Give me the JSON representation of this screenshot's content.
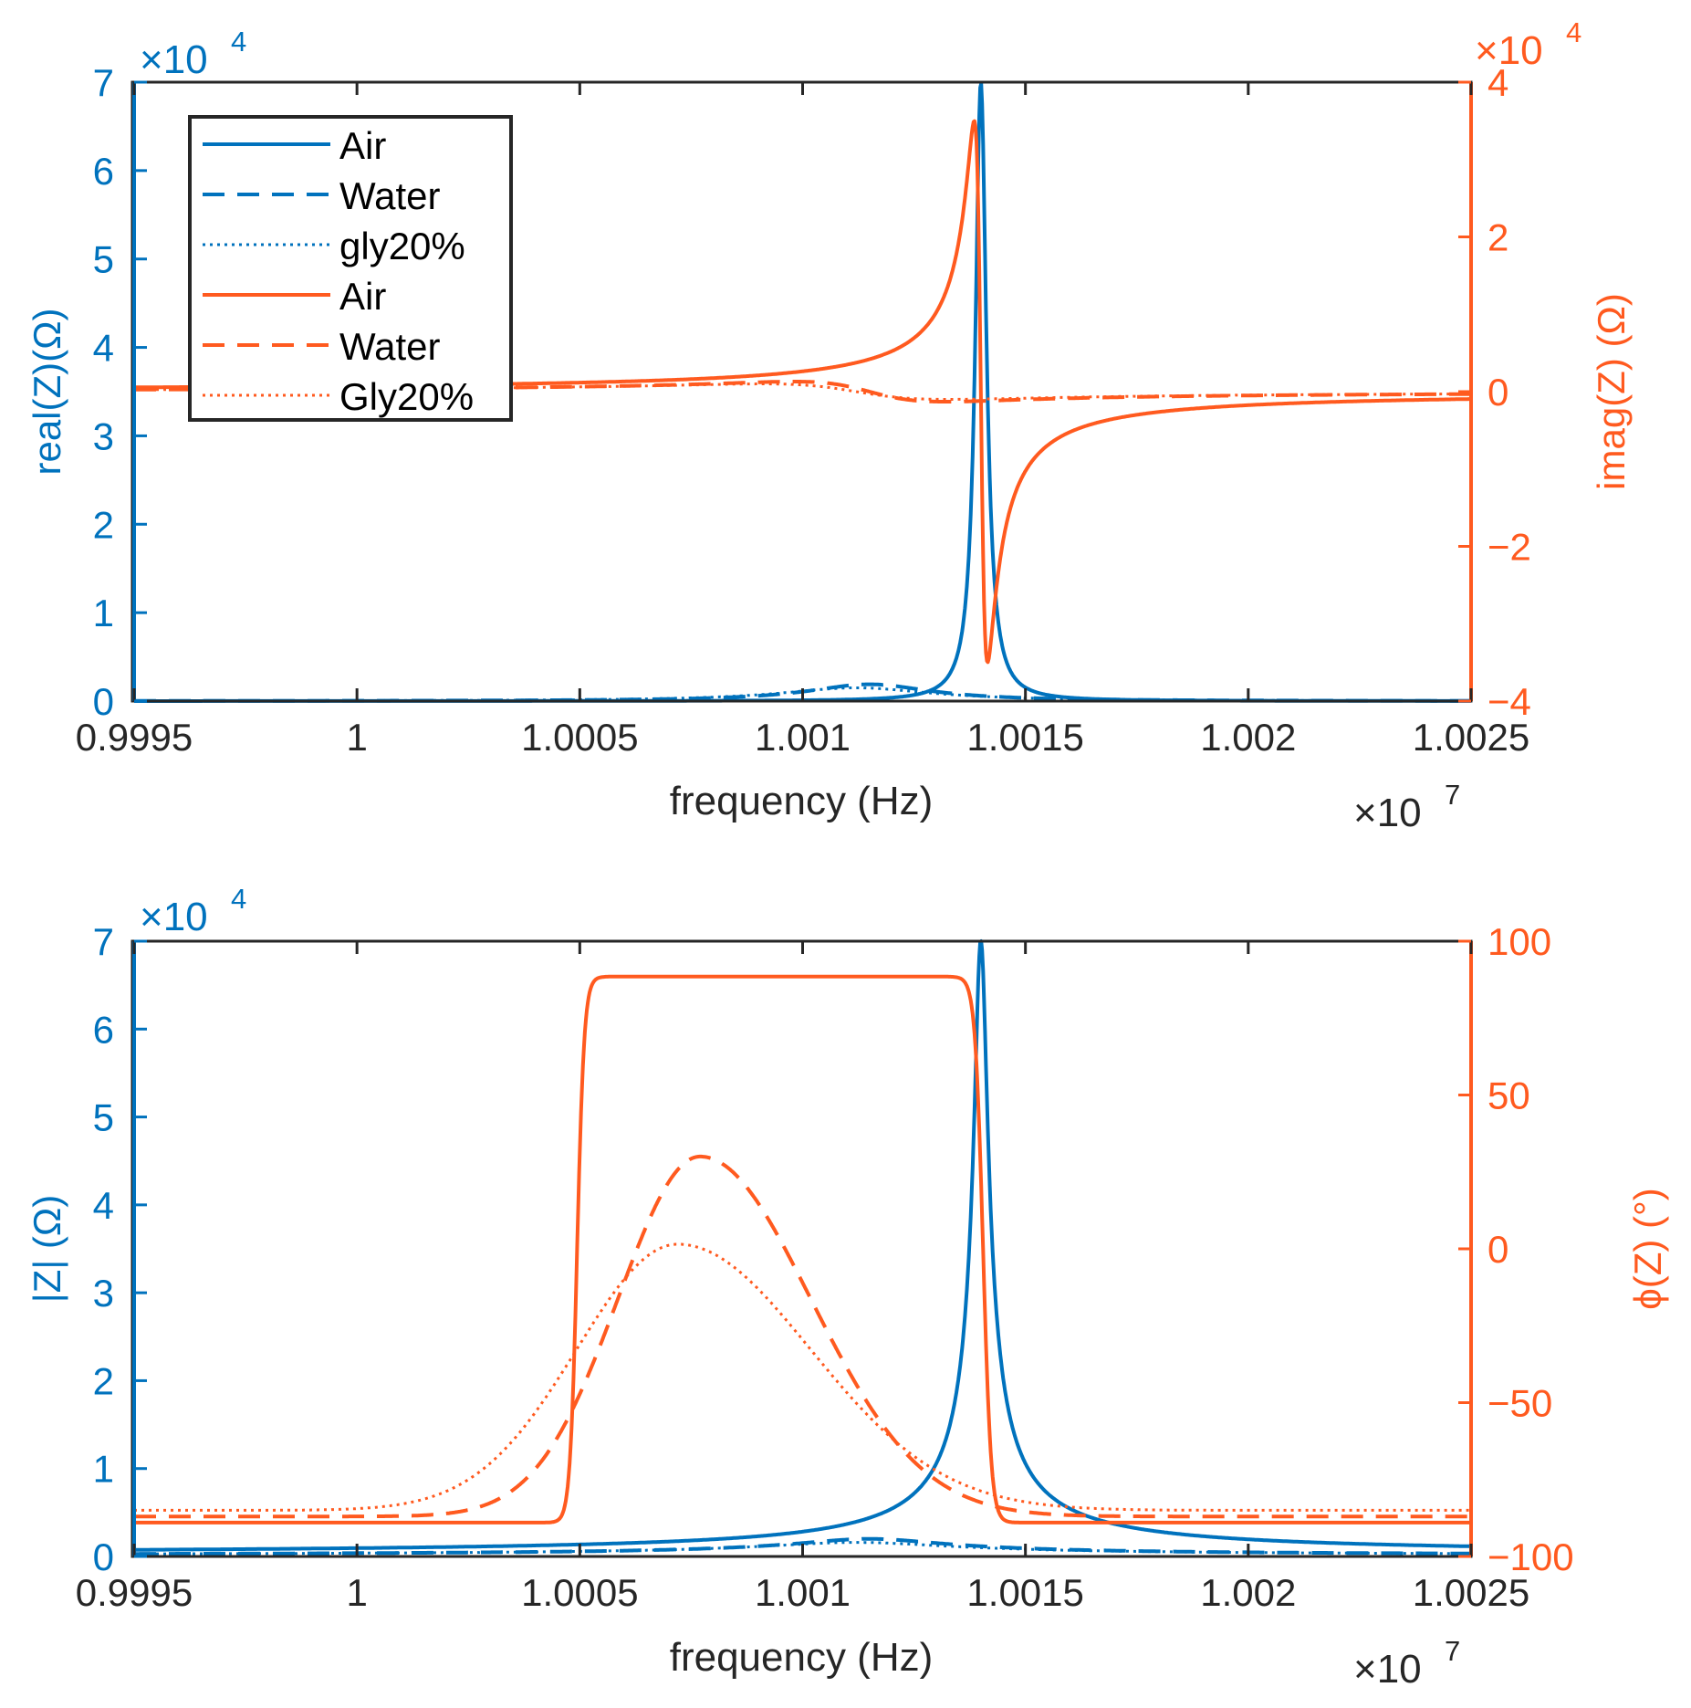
{
  "colors": {
    "blue": "#0072BD",
    "orange": "#FF5A1F",
    "black": "#262626"
  },
  "chart_data": [
    {
      "type": "line",
      "id": "top",
      "xlabel": "frequency (Hz)",
      "x_exponent": "×10",
      "x_exponent_power": "7",
      "xlim": [
        0.9995,
        1.0025
      ],
      "xticks": [
        "0.9995",
        "1",
        "1.0005",
        "1.001",
        "1.0015",
        "1.002",
        "1.0025"
      ],
      "ylabel_left": "real(Z)(Ω)",
      "ylim_left": [
        0,
        7
      ],
      "yticks_left": [
        "0",
        "1",
        "2",
        "3",
        "4",
        "5",
        "6",
        "7"
      ],
      "left_exponent": "×10",
      "left_exponent_power": "4",
      "ylabel_right": "imag(Z) (Ω)",
      "ylim_right": [
        -4,
        4
      ],
      "yticks_right": [
        "-4",
        "-2",
        "0",
        "2",
        "4"
      ],
      "right_exponent": "×10",
      "right_exponent_power": "4",
      "legend": [
        {
          "label": "Air",
          "color": "blue",
          "style": "solid"
        },
        {
          "label": "Water",
          "color": "blue",
          "style": "dashed"
        },
        {
          "label": "gly20%",
          "color": "blue",
          "style": "dotted"
        },
        {
          "label": "Air",
          "color": "orange",
          "style": "solid"
        },
        {
          "label": "Water",
          "color": "orange",
          "style": "dashed"
        },
        {
          "label": "Gly20%",
          "color": "orange",
          "style": "dotted"
        }
      ],
      "series": [
        {
          "name": "Air real(Z)",
          "axis": "left",
          "color": "blue",
          "style": "solid",
          "model": "real",
          "f0": 1.0014,
          "gamma": 1.5e-05,
          "peak": 7.0
        },
        {
          "name": "Water real(Z)",
          "axis": "left",
          "color": "blue",
          "style": "dashed",
          "model": "real",
          "f0": 1.00115,
          "gamma": 0.00017,
          "peak": 0.19
        },
        {
          "name": "gly20% real(Z)",
          "axis": "left",
          "color": "blue",
          "style": "dotted",
          "model": "real",
          "f0": 1.00112,
          "gamma": 0.00021,
          "peak": 0.15
        },
        {
          "name": "Air imag(Z)",
          "axis": "right",
          "color": "orange",
          "style": "solid",
          "model": "imag",
          "f0": 1.0014,
          "gamma": 1.5e-05,
          "peak": 3.5
        },
        {
          "name": "Water imag(Z)",
          "axis": "right",
          "color": "orange",
          "style": "dashed",
          "model": "imag",
          "f0": 1.00115,
          "gamma": 0.00017,
          "peak": 0.13
        },
        {
          "name": "Gly20% imag(Z)",
          "axis": "right",
          "color": "orange",
          "style": "dotted",
          "model": "imag",
          "f0": 1.00112,
          "gamma": 0.00021,
          "peak": 0.1
        }
      ]
    },
    {
      "type": "line",
      "id": "bottom",
      "xlabel": "frequency (Hz)",
      "x_exponent": "×10",
      "x_exponent_power": "7",
      "xlim": [
        0.9995,
        1.0025
      ],
      "xticks": [
        "0.9995",
        "1",
        "1.0005",
        "1.001",
        "1.0015",
        "1.002",
        "1.0025"
      ],
      "ylabel_left": "|Z| (Ω)",
      "ylim_left": [
        0,
        7
      ],
      "yticks_left": [
        "0",
        "1",
        "2",
        "3",
        "4",
        "5",
        "6",
        "7"
      ],
      "left_exponent": "×10",
      "left_exponent_power": "4",
      "ylabel_right": "ϕ(Z) (°)",
      "ylim_right": [
        -100,
        100
      ],
      "yticks_right": [
        "-100",
        "-50",
        "0",
        "50",
        "100"
      ],
      "series": [
        {
          "name": "Air |Z|",
          "axis": "left",
          "color": "blue",
          "style": "solid",
          "model": "mag",
          "f0": 1.0014,
          "gamma": 1.5e-05,
          "peak": 7.0,
          "base": 0.02
        },
        {
          "name": "Water |Z|",
          "axis": "left",
          "color": "blue",
          "style": "dashed",
          "model": "mag",
          "f0": 1.00115,
          "gamma": 0.00017,
          "peak": 0.19,
          "base": 0.01
        },
        {
          "name": "gly20% |Z|",
          "axis": "left",
          "color": "blue",
          "style": "dotted",
          "model": "mag",
          "f0": 1.00112,
          "gamma": 0.00021,
          "peak": 0.15,
          "base": 0.01
        },
        {
          "name": "Air phase",
          "axis": "right",
          "color": "orange",
          "style": "solid",
          "model": "phase_air",
          "f1": 1.000494,
          "f2": 1.001405,
          "w1": 8e-06,
          "w2": 9e-06,
          "low": -89,
          "high": 88.5
        },
        {
          "name": "Water phase",
          "axis": "right",
          "color": "orange",
          "style": "dashed",
          "model": "phase_bump",
          "center": 1.00077,
          "wl": 0.00026,
          "wr": 0.00035,
          "low": -87,
          "high": 30
        },
        {
          "name": "Gly20% phase",
          "axis": "right",
          "color": "orange",
          "style": "dotted",
          "model": "phase_bump",
          "center": 1.00072,
          "wl": 0.00032,
          "wr": 0.00042,
          "low": -85,
          "high": 1.5
        }
      ]
    }
  ]
}
